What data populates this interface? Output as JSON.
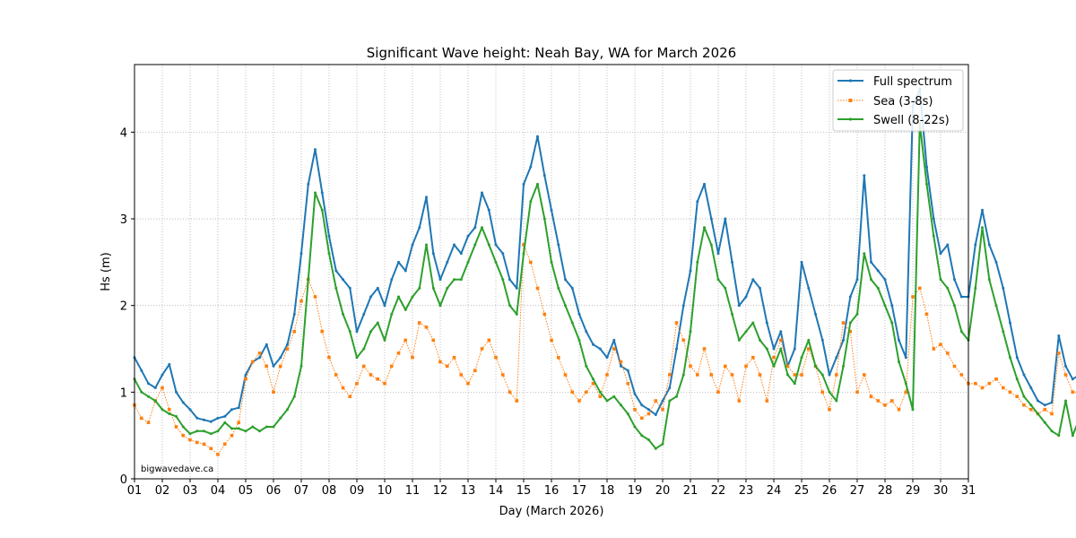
{
  "chart_data": {
    "type": "line",
    "title": "Significant Wave height: Neah Bay, WA for March 2026",
    "xlabel": "Day (March 2026)",
    "ylabel": "Hs (m)",
    "xlim": [
      1,
      31
    ],
    "ylim": [
      0,
      4.78
    ],
    "grid": true,
    "legend_position": "top-right",
    "watermark": "bigwavedave.ca",
    "x_ticks": [
      "01",
      "02",
      "03",
      "04",
      "05",
      "06",
      "07",
      "08",
      "09",
      "10",
      "11",
      "12",
      "13",
      "14",
      "15",
      "16",
      "17",
      "18",
      "19",
      "20",
      "21",
      "22",
      "23",
      "24",
      "25",
      "26",
      "27",
      "28",
      "29",
      "30",
      "31"
    ],
    "y_ticks": [
      "0",
      "1",
      "2",
      "3",
      "4"
    ],
    "x_step_days": 0.25,
    "x_start_day": 1,
    "series": [
      {
        "name": "Full spectrum",
        "color": "#1f77b4",
        "style": "solid",
        "values": [
          1.4,
          1.25,
          1.1,
          1.05,
          1.2,
          1.32,
          1.0,
          0.88,
          0.8,
          0.7,
          0.68,
          0.66,
          0.7,
          0.72,
          0.8,
          0.82,
          1.2,
          1.35,
          1.4,
          1.55,
          1.3,
          1.4,
          1.55,
          1.9,
          2.6,
          3.4,
          3.8,
          3.3,
          2.8,
          2.4,
          2.3,
          2.2,
          1.7,
          1.9,
          2.1,
          2.2,
          2.0,
          2.3,
          2.5,
          2.4,
          2.7,
          2.9,
          3.25,
          2.6,
          2.3,
          2.5,
          2.7,
          2.6,
          2.8,
          2.9,
          3.3,
          3.1,
          2.7,
          2.6,
          2.3,
          2.2,
          3.4,
          3.6,
          3.95,
          3.5,
          3.1,
          2.7,
          2.3,
          2.2,
          1.9,
          1.7,
          1.55,
          1.5,
          1.4,
          1.6,
          1.3,
          1.25,
          0.98,
          0.85,
          0.8,
          0.74,
          0.9,
          1.05,
          1.5,
          2.0,
          2.4,
          3.2,
          3.4,
          3.0,
          2.6,
          3.0,
          2.5,
          2.0,
          2.1,
          2.3,
          2.2,
          1.8,
          1.5,
          1.7,
          1.3,
          1.5,
          2.5,
          2.2,
          1.9,
          1.6,
          1.2,
          1.4,
          1.6,
          2.1,
          2.3,
          3.5,
          2.5,
          2.4,
          2.3,
          2.0,
          1.6,
          1.4,
          4.3,
          4.5,
          3.6,
          3.0,
          2.6,
          2.7,
          2.3,
          2.1,
          2.1,
          2.7,
          3.1,
          2.7,
          2.5,
          2.2,
          1.8,
          1.4,
          1.2,
          1.05,
          0.9,
          0.85,
          0.88,
          1.65,
          1.3,
          1.15,
          1.2
        ]
      },
      {
        "name": "Sea (3-8s)",
        "color": "#ff7f0e",
        "style": "dotted",
        "values": [
          0.85,
          0.7,
          0.65,
          0.9,
          1.05,
          0.8,
          0.6,
          0.5,
          0.45,
          0.42,
          0.4,
          0.35,
          0.28,
          0.4,
          0.5,
          0.65,
          1.15,
          1.35,
          1.45,
          1.3,
          1.0,
          1.3,
          1.5,
          1.7,
          2.05,
          2.3,
          2.1,
          1.7,
          1.4,
          1.2,
          1.05,
          0.95,
          1.1,
          1.3,
          1.2,
          1.15,
          1.1,
          1.3,
          1.45,
          1.6,
          1.4,
          1.8,
          1.75,
          1.6,
          1.35,
          1.3,
          1.4,
          1.2,
          1.1,
          1.25,
          1.5,
          1.6,
          1.4,
          1.2,
          1.0,
          0.9,
          2.7,
          2.5,
          2.2,
          1.9,
          1.6,
          1.4,
          1.2,
          1.0,
          0.9,
          1.0,
          1.1,
          0.95,
          1.2,
          1.5,
          1.35,
          1.1,
          0.8,
          0.7,
          0.75,
          0.9,
          0.8,
          1.2,
          1.8,
          1.6,
          1.3,
          1.2,
          1.5,
          1.2,
          1.0,
          1.3,
          1.2,
          0.9,
          1.3,
          1.4,
          1.2,
          0.9,
          1.4,
          1.6,
          1.3,
          1.2,
          1.2,
          1.5,
          1.3,
          1.0,
          0.8,
          1.2,
          1.8,
          1.7,
          1.0,
          1.2,
          0.95,
          0.9,
          0.85,
          0.9,
          0.8,
          1.0,
          2.1,
          2.2,
          1.9,
          1.5,
          1.55,
          1.45,
          1.3,
          1.2,
          1.1,
          1.1,
          1.05,
          1.1,
          1.15,
          1.05,
          1.0,
          0.95,
          0.85,
          0.8,
          0.75,
          0.8,
          0.75,
          1.45,
          1.2,
          1.0,
          1.0
        ]
      },
      {
        "name": "Swell (8-22s)",
        "color": "#2ca02c",
        "style": "solid",
        "values": [
          1.15,
          1.0,
          0.95,
          0.9,
          0.8,
          0.75,
          0.72,
          0.6,
          0.52,
          0.55,
          0.55,
          0.52,
          0.55,
          0.65,
          0.58,
          0.58,
          0.55,
          0.6,
          0.55,
          0.6,
          0.6,
          0.7,
          0.8,
          0.95,
          1.3,
          2.3,
          3.3,
          3.1,
          2.6,
          2.2,
          1.9,
          1.7,
          1.4,
          1.5,
          1.7,
          1.8,
          1.6,
          1.9,
          2.1,
          1.95,
          2.1,
          2.2,
          2.7,
          2.2,
          2.0,
          2.2,
          2.3,
          2.3,
          2.5,
          2.7,
          2.9,
          2.7,
          2.5,
          2.3,
          2.0,
          1.9,
          2.6,
          3.2,
          3.4,
          3.0,
          2.5,
          2.2,
          2.0,
          1.8,
          1.6,
          1.3,
          1.15,
          1.0,
          0.9,
          0.95,
          0.85,
          0.75,
          0.6,
          0.5,
          0.45,
          0.35,
          0.4,
          0.9,
          0.95,
          1.2,
          1.7,
          2.5,
          2.9,
          2.7,
          2.3,
          2.2,
          1.9,
          1.6,
          1.7,
          1.8,
          1.6,
          1.5,
          1.3,
          1.5,
          1.2,
          1.1,
          1.4,
          1.6,
          1.3,
          1.2,
          1.0,
          0.9,
          1.3,
          1.8,
          1.9,
          2.6,
          2.3,
          2.2,
          2.0,
          1.8,
          1.35,
          1.1,
          0.8,
          4.1,
          3.4,
          2.8,
          2.3,
          2.2,
          2.0,
          1.7,
          1.6,
          2.2,
          2.9,
          2.3,
          2.0,
          1.7,
          1.4,
          1.15,
          0.95,
          0.85,
          0.75,
          0.65,
          0.55,
          0.5,
          0.9,
          0.5,
          0.7
        ]
      }
    ]
  }
}
